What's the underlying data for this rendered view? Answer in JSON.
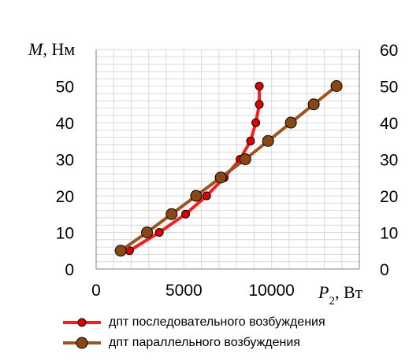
{
  "chart_data": {
    "type": "scatter",
    "y_axis_title": {
      "italic": "M",
      "rest": ", Нм"
    },
    "x_axis_title": {
      "italic": "P",
      "sub": "2",
      "rest": ", Вт"
    },
    "xlim": [
      0,
      15000
    ],
    "ylim": [
      0,
      60
    ],
    "x_ticks": [
      "0",
      "5000",
      "10000"
    ],
    "y_ticks_left": [
      "0",
      "10",
      "20",
      "30",
      "40",
      "50"
    ],
    "y_ticks_right": [
      "0",
      "10",
      "20",
      "30",
      "40",
      "50",
      "60"
    ],
    "grid": true,
    "legend_position": "bottom",
    "series": [
      {
        "name": "дпт последовательного возбуждения",
        "color": "#ff1a1a",
        "marker_color": "#e00000",
        "points": [
          [
            1900,
            5
          ],
          [
            3600,
            10
          ],
          [
            5100,
            15
          ],
          [
            6300,
            20
          ],
          [
            7300,
            25
          ],
          [
            8200,
            30
          ],
          [
            8800,
            35
          ],
          [
            9100,
            40
          ],
          [
            9300,
            45
          ],
          [
            9300,
            50
          ]
        ]
      },
      {
        "name": "дпт параллельного возбуждения",
        "color": "#a0521e",
        "marker_color": "#8a4713",
        "points": [
          [
            1400,
            5
          ],
          [
            2900,
            10
          ],
          [
            4300,
            15
          ],
          [
            5700,
            20
          ],
          [
            7100,
            25
          ],
          [
            8500,
            30
          ],
          [
            9800,
            35
          ],
          [
            11100,
            40
          ],
          [
            12400,
            45
          ],
          [
            13700,
            50
          ]
        ]
      }
    ]
  }
}
